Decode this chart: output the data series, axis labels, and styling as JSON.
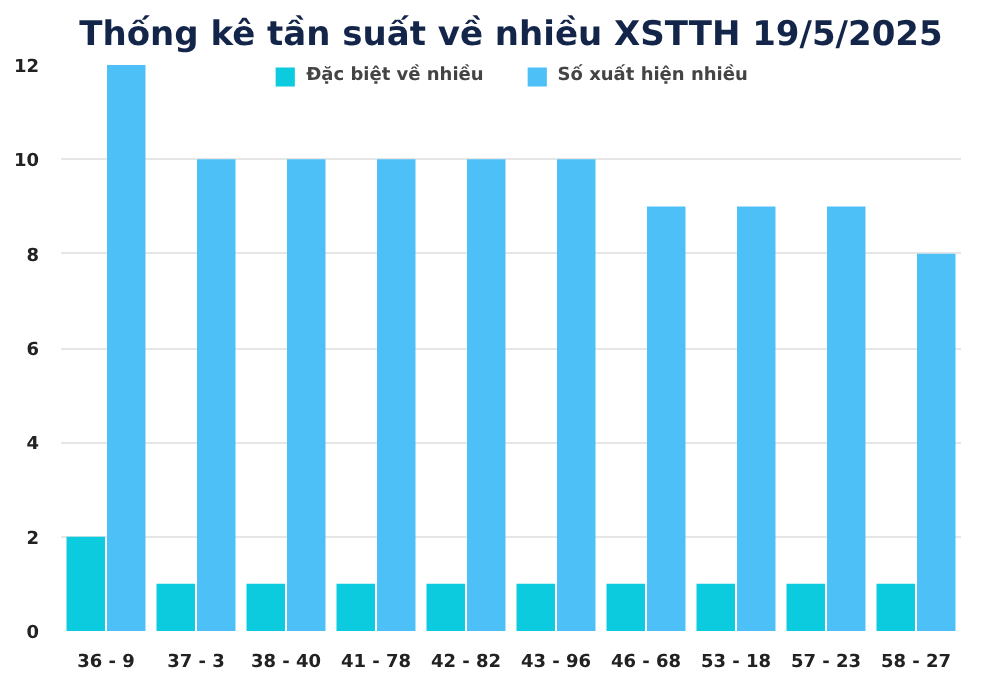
{
  "chart_data": {
    "type": "bar",
    "title": "Thống kê tần suất về nhiều XSTTH 19/5/2025",
    "categories": [
      "36 - 9",
      "37 - 3",
      "38 - 40",
      "41 - 78",
      "42 - 82",
      "43 - 96",
      "46 - 68",
      "53 - 18",
      "57 - 23",
      "58 - 27"
    ],
    "series": [
      {
        "name": "Đặc biệt về nhiều",
        "color": "#0ccbdf",
        "values": [
          2,
          1,
          1,
          1,
          1,
          1,
          1,
          1,
          1,
          1
        ]
      },
      {
        "name": "Số xuất hiện nhiều",
        "color": "#4dc0f8",
        "values": [
          12,
          10,
          10,
          10,
          10,
          10,
          9,
          9,
          9,
          8
        ]
      }
    ],
    "ylim": [
      0,
      12
    ],
    "yticks": [
      0,
      2,
      4,
      6,
      8,
      10,
      12
    ],
    "grid": "y",
    "legend": "top"
  }
}
